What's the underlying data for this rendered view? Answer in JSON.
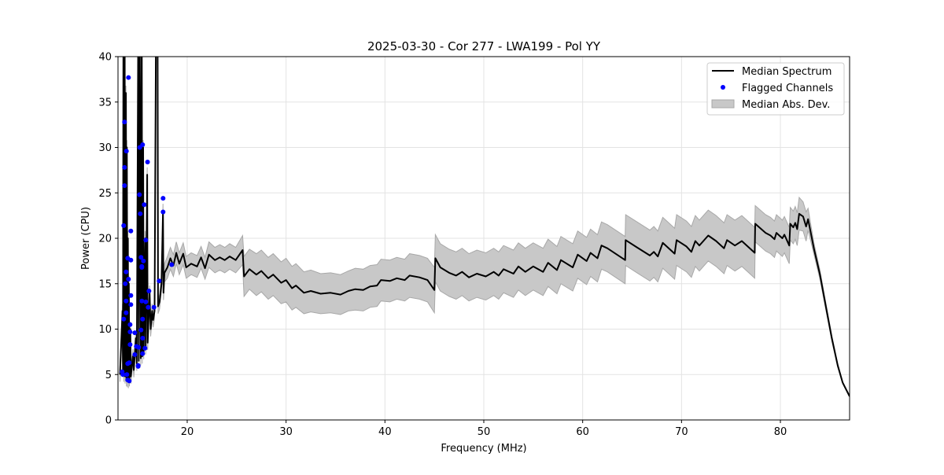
{
  "chart_data": {
    "type": "line",
    "title": "2025-03-30 - Cor 277 - LWA199 - Pol YY",
    "xlabel": "Frequency (MHz)",
    "ylabel": "Power (CPU)",
    "xlim": [
      13,
      87
    ],
    "ylim": [
      0,
      40
    ],
    "xticks": [
      20,
      30,
      40,
      50,
      60,
      70,
      80
    ],
    "yticks": [
      0,
      5,
      10,
      15,
      20,
      25,
      30,
      35,
      40
    ],
    "grid": true,
    "legend": {
      "placement": "top-right",
      "entries": [
        "Median Spectrum",
        "Flagged Channels",
        "Median Abs. Dev."
      ]
    },
    "colors": {
      "median": "#000000",
      "flagged": "#0000ff",
      "mad": "#c8c8c8",
      "mad_edge": "#a0a0a0"
    },
    "series": [
      {
        "name": "Median Spectrum",
        "comment_columns": [
          "freq_mhz",
          "median",
          "median_abs_dev"
        ],
        "points": [
          [
            13.2,
            5.0,
            0.8
          ],
          [
            13.45,
            12,
            0.8
          ],
          [
            13.5,
            5.5,
            0.8
          ],
          [
            13.55,
            45,
            0.8
          ],
          [
            13.6,
            5.0,
            0.8
          ],
          [
            13.68,
            45,
            0.8
          ],
          [
            13.72,
            4.8,
            0.8
          ],
          [
            13.8,
            36,
            0.8
          ],
          [
            13.85,
            4.5,
            0.8
          ],
          [
            13.9,
            30,
            0.8
          ],
          [
            13.95,
            4.4,
            0.8
          ],
          [
            14.0,
            20,
            0.8
          ],
          [
            14.05,
            4.3,
            0.8
          ],
          [
            14.1,
            15,
            0.8
          ],
          [
            14.15,
            4.5,
            0.8
          ],
          [
            14.25,
            10,
            0.8
          ],
          [
            14.3,
            4.8,
            0.8
          ],
          [
            14.5,
            7,
            0.8
          ],
          [
            14.6,
            5.5,
            0.8
          ],
          [
            14.8,
            9,
            0.8
          ],
          [
            14.9,
            6.2,
            0.8
          ],
          [
            15.05,
            45,
            0.8
          ],
          [
            15.1,
            6.5,
            0.8
          ],
          [
            15.2,
            45,
            0.8
          ],
          [
            15.3,
            6.8,
            0.8
          ],
          [
            15.4,
            45,
            0.8
          ],
          [
            15.45,
            7,
            0.8
          ],
          [
            15.55,
            30,
            0.8
          ],
          [
            15.6,
            7.5,
            0.8
          ],
          [
            15.75,
            20,
            0.8
          ],
          [
            15.8,
            8,
            0.8
          ],
          [
            15.95,
            27,
            0.8
          ],
          [
            16.0,
            8.5,
            0.8
          ],
          [
            16.2,
            14,
            0.8
          ],
          [
            16.3,
            10,
            0.8
          ],
          [
            16.45,
            12,
            0.8
          ],
          [
            16.55,
            11,
            0.8
          ],
          [
            16.7,
            12,
            0.8
          ],
          [
            16.85,
            45,
            0.8
          ],
          [
            17.0,
            45,
            0.8
          ],
          [
            17.05,
            12.5,
            0.8
          ],
          [
            17.2,
            13,
            0.8
          ],
          [
            17.4,
            15,
            0.8
          ],
          [
            17.55,
            23,
            0.8
          ],
          [
            17.6,
            14,
            0.8
          ],
          [
            17.7,
            16.2,
            1.0
          ],
          [
            18.0,
            16.8,
            1.2
          ],
          [
            18.3,
            17.8,
            1.2
          ],
          [
            18.6,
            17.0,
            1.2
          ],
          [
            18.9,
            18.4,
            1.2
          ],
          [
            19.2,
            17.2,
            1.2
          ],
          [
            19.6,
            18.3,
            1.2
          ],
          [
            19.9,
            16.8,
            1.2
          ],
          [
            20.4,
            17.2,
            1.2
          ],
          [
            21.0,
            16.9,
            1.2
          ],
          [
            21.4,
            17.9,
            1.2
          ],
          [
            21.8,
            16.7,
            1.2
          ],
          [
            22.2,
            18.2,
            1.4
          ],
          [
            22.8,
            17.6,
            1.4
          ],
          [
            23.3,
            17.9,
            1.4
          ],
          [
            23.8,
            17.6,
            1.4
          ],
          [
            24.3,
            18.0,
            1.4
          ],
          [
            24.9,
            17.6,
            1.4
          ],
          [
            25.6,
            18.7,
            1.6
          ],
          [
            25.75,
            15.8,
            2.2
          ],
          [
            26.3,
            16.6,
            2.2
          ],
          [
            27.0,
            16.0,
            2.3
          ],
          [
            27.5,
            16.4,
            2.3
          ],
          [
            28.2,
            15.6,
            2.3
          ],
          [
            28.7,
            16.0,
            2.3
          ],
          [
            29.5,
            15.1,
            2.3
          ],
          [
            30.0,
            15.4,
            2.4
          ],
          [
            30.6,
            14.5,
            2.4
          ],
          [
            31.0,
            14.8,
            2.4
          ],
          [
            31.8,
            14.0,
            2.3
          ],
          [
            32.5,
            14.2,
            2.3
          ],
          [
            33.5,
            13.9,
            2.2
          ],
          [
            34.5,
            14.0,
            2.2
          ],
          [
            35.5,
            13.8,
            2.2
          ],
          [
            36.3,
            14.2,
            2.2
          ],
          [
            37.0,
            14.4,
            2.3
          ],
          [
            37.8,
            14.3,
            2.3
          ],
          [
            38.5,
            14.7,
            2.3
          ],
          [
            39.2,
            14.8,
            2.3
          ],
          [
            39.6,
            15.4,
            2.3
          ],
          [
            40.5,
            15.3,
            2.3
          ],
          [
            41.2,
            15.6,
            2.3
          ],
          [
            42.0,
            15.4,
            2.3
          ],
          [
            42.5,
            15.9,
            2.4
          ],
          [
            43.5,
            15.7,
            2.4
          ],
          [
            44.3,
            15.4,
            2.4
          ],
          [
            45.0,
            14.3,
            2.5
          ],
          [
            45.1,
            17.8,
            2.6
          ],
          [
            45.6,
            16.8,
            2.6
          ],
          [
            46.5,
            16.2,
            2.6
          ],
          [
            47.2,
            15.9,
            2.6
          ],
          [
            47.8,
            16.3,
            2.6
          ],
          [
            48.5,
            15.7,
            2.6
          ],
          [
            49.3,
            16.1,
            2.6
          ],
          [
            50.2,
            15.8,
            2.6
          ],
          [
            51.0,
            16.3,
            2.6
          ],
          [
            51.5,
            15.9,
            2.6
          ],
          [
            52.0,
            16.6,
            2.6
          ],
          [
            53.0,
            16.1,
            2.6
          ],
          [
            53.5,
            16.9,
            2.6
          ],
          [
            54.2,
            16.3,
            2.6
          ],
          [
            55.0,
            16.9,
            2.6
          ],
          [
            56.0,
            16.3,
            2.6
          ],
          [
            56.5,
            17.3,
            2.6
          ],
          [
            57.4,
            16.5,
            2.6
          ],
          [
            57.8,
            17.6,
            2.6
          ],
          [
            59.0,
            16.8,
            2.6
          ],
          [
            59.5,
            18.2,
            2.6
          ],
          [
            60.4,
            17.5,
            2.6
          ],
          [
            60.8,
            18.4,
            2.6
          ],
          [
            61.5,
            17.8,
            2.6
          ],
          [
            61.9,
            19.2,
            2.6
          ],
          [
            62.5,
            18.9,
            2.6
          ],
          [
            64.3,
            17.6,
            2.6
          ],
          [
            64.35,
            19.8,
            2.8
          ],
          [
            65.5,
            19.0,
            2.8
          ],
          [
            66.8,
            18.1,
            2.8
          ],
          [
            67.2,
            18.5,
            2.8
          ],
          [
            67.6,
            18.0,
            2.8
          ],
          [
            68.1,
            19.5,
            2.8
          ],
          [
            69.3,
            18.3,
            2.8
          ],
          [
            69.5,
            19.8,
            2.8
          ],
          [
            70.5,
            19.1,
            2.8
          ],
          [
            71.0,
            18.5,
            2.8
          ],
          [
            71.4,
            19.7,
            2.8
          ],
          [
            71.8,
            19.2,
            2.8
          ],
          [
            72.7,
            20.3,
            2.8
          ],
          [
            73.5,
            19.7,
            2.8
          ],
          [
            74.3,
            18.9,
            2.8
          ],
          [
            74.6,
            19.8,
            2.8
          ],
          [
            75.4,
            19.2,
            2.8
          ],
          [
            76.1,
            19.7,
            2.8
          ],
          [
            77.4,
            18.4,
            2.8
          ],
          [
            77.45,
            21.6,
            2.0
          ],
          [
            78.5,
            20.6,
            2.0
          ],
          [
            79.0,
            20.3,
            2.0
          ],
          [
            79.4,
            19.9,
            2.0
          ],
          [
            79.6,
            20.6,
            2.0
          ],
          [
            80.2,
            20.0,
            2.0
          ],
          [
            80.4,
            20.4,
            2.0
          ],
          [
            80.9,
            19.2,
            2.0
          ],
          [
            81.0,
            21.6,
            1.8
          ],
          [
            81.3,
            21.2,
            1.8
          ],
          [
            81.5,
            21.7,
            1.8
          ],
          [
            81.7,
            21.0,
            1.8
          ],
          [
            81.9,
            22.7,
            1.8
          ],
          [
            82.3,
            22.4,
            1.6
          ],
          [
            82.6,
            21.3,
            1.6
          ],
          [
            82.8,
            22.1,
            1.2
          ],
          [
            83.4,
            18.8,
            0.6
          ],
          [
            84.0,
            16.0,
            0.5
          ],
          [
            84.6,
            12.5,
            0.4
          ],
          [
            85.2,
            9.0,
            0.3
          ],
          [
            85.8,
            6.0,
            0.2
          ],
          [
            86.3,
            4.1,
            0.1
          ],
          [
            87.0,
            2.6,
            0.05
          ]
        ]
      },
      {
        "name": "Flagged Channels",
        "points": [
          [
            14.06,
            37.7
          ],
          [
            13.66,
            32.8
          ],
          [
            13.85,
            29.6
          ],
          [
            13.66,
            27.8
          ],
          [
            13.66,
            25.8
          ],
          [
            13.58,
            21.4
          ],
          [
            14.3,
            20.8
          ],
          [
            13.98,
            17.8
          ],
          [
            14.3,
            17.6
          ],
          [
            13.82,
            16.3
          ],
          [
            14.06,
            15.5
          ],
          [
            13.74,
            15.0
          ],
          [
            14.3,
            13.7
          ],
          [
            13.82,
            13.1
          ],
          [
            14.3,
            12.7
          ],
          [
            13.82,
            11.8
          ],
          [
            13.58,
            11.1
          ],
          [
            14.22,
            10.5
          ],
          [
            14.22,
            9.7
          ],
          [
            14.7,
            9.6
          ],
          [
            14.22,
            8.3
          ],
          [
            14.85,
            8.1
          ],
          [
            15.09,
            8.0
          ],
          [
            14.7,
            7.2
          ],
          [
            13.98,
            6.2
          ],
          [
            14.14,
            6.3
          ],
          [
            15.04,
            5.9
          ],
          [
            15.04,
            6.0
          ],
          [
            13.42,
            5.3
          ],
          [
            13.5,
            5.0
          ],
          [
            13.9,
            5.0
          ],
          [
            13.98,
            4.4
          ],
          [
            14.14,
            4.3
          ],
          [
            15.2,
            30.0
          ],
          [
            15.49,
            30.3
          ],
          [
            15.99,
            28.4
          ],
          [
            15.17,
            24.8
          ],
          [
            15.65,
            23.7
          ],
          [
            15.25,
            22.7
          ],
          [
            15.81,
            19.8
          ],
          [
            15.33,
            17.9
          ],
          [
            15.57,
            17.5
          ],
          [
            15.41,
            16.9
          ],
          [
            15.41,
            16.8
          ],
          [
            16.13,
            14.2
          ],
          [
            15.41,
            13.1
          ],
          [
            15.81,
            13.0
          ],
          [
            16.05,
            12.4
          ],
          [
            16.64,
            12.4
          ],
          [
            15.49,
            11.1
          ],
          [
            15.33,
            9.9
          ],
          [
            15.49,
            9.0
          ],
          [
            15.73,
            7.9
          ],
          [
            15.49,
            7.3
          ],
          [
            17.16,
            15.3
          ],
          [
            17.56,
            24.4
          ],
          [
            17.56,
            22.9
          ],
          [
            18.43,
            17.1
          ]
        ]
      }
    ]
  }
}
